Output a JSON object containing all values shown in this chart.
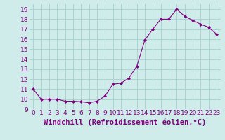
{
  "x": [
    0,
    1,
    2,
    3,
    4,
    5,
    6,
    7,
    8,
    9,
    10,
    11,
    12,
    13,
    14,
    15,
    16,
    17,
    18,
    19,
    20,
    21,
    22,
    23
  ],
  "y": [
    11.0,
    10.0,
    10.0,
    10.0,
    9.8,
    9.8,
    9.75,
    9.65,
    9.8,
    10.3,
    11.5,
    11.6,
    12.1,
    13.3,
    15.9,
    17.0,
    18.0,
    18.0,
    19.0,
    18.3,
    17.9,
    17.5,
    17.2,
    16.5
  ],
  "line_color": "#800080",
  "marker": "D",
  "marker_size": 2.0,
  "bg_color": "#d0ecea",
  "grid_color": "#a8d4d0",
  "xlabel": "Windchill (Refroidissement éolien,°C)",
  "xlabel_color": "#800080",
  "xlabel_fontsize": 7.5,
  "tick_color": "#800080",
  "tick_fontsize": 6.5,
  "ylim": [
    9,
    19.5
  ],
  "xlim": [
    -0.5,
    23.5
  ],
  "yticks": [
    9,
    10,
    11,
    12,
    13,
    14,
    15,
    16,
    17,
    18,
    19
  ],
  "xticks": [
    0,
    1,
    2,
    3,
    4,
    5,
    6,
    7,
    8,
    9,
    10,
    11,
    12,
    13,
    14,
    15,
    16,
    17,
    18,
    19,
    20,
    21,
    22,
    23
  ]
}
